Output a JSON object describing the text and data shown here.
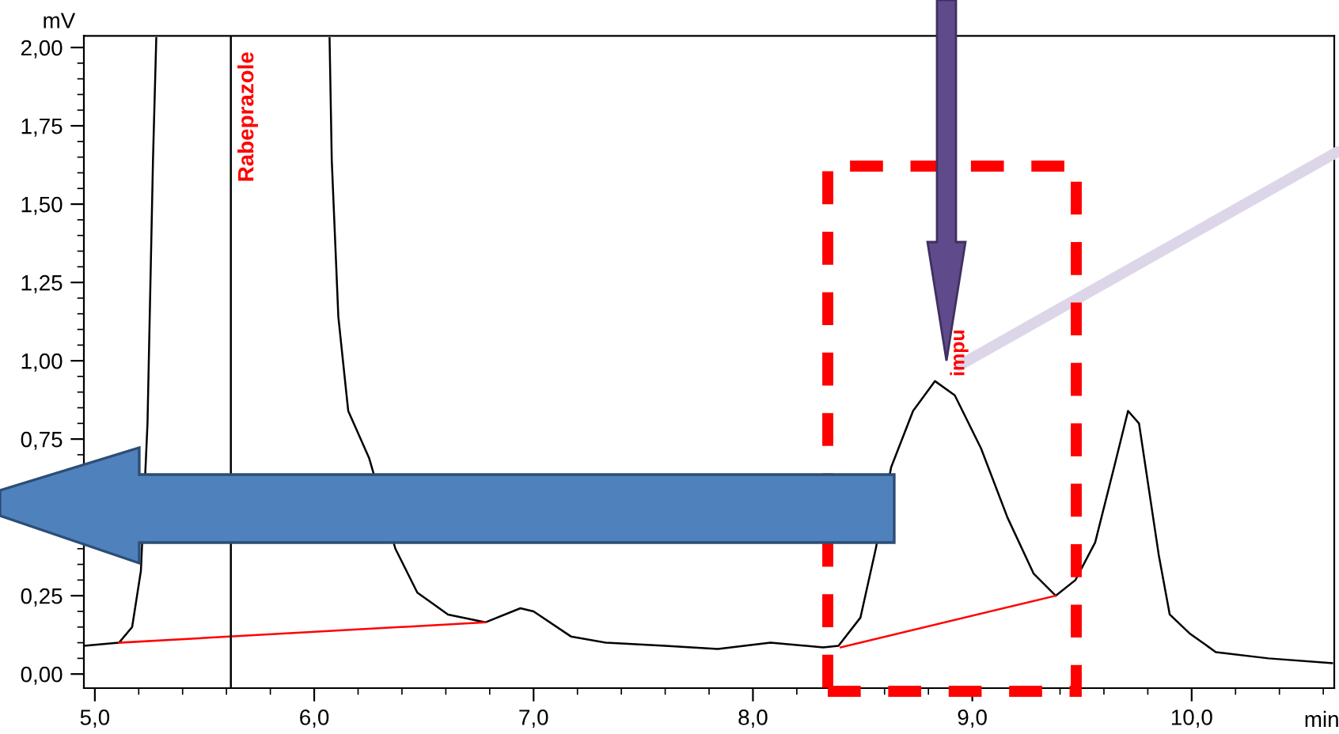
{
  "chart_data": {
    "type": "line",
    "xlabel": "min",
    "ylabel": "mV",
    "xlim": [
      4.95,
      10.65
    ],
    "ylim": [
      -0.045,
      2.037
    ],
    "xticks": [
      {
        "value": 5.0,
        "label": "5,0"
      },
      {
        "value": 5.2,
        "label": null
      },
      {
        "value": 5.4,
        "label": null
      },
      {
        "value": 5.6,
        "label": null
      },
      {
        "value": 5.8,
        "label": null
      },
      {
        "value": 6.0,
        "label": "6,0"
      },
      {
        "value": 6.2,
        "label": null
      },
      {
        "value": 6.4,
        "label": null
      },
      {
        "value": 6.6,
        "label": null
      },
      {
        "value": 6.8,
        "label": null
      },
      {
        "value": 7.0,
        "label": "7,0"
      },
      {
        "value": 7.2,
        "label": null
      },
      {
        "value": 7.4,
        "label": null
      },
      {
        "value": 7.6,
        "label": null
      },
      {
        "value": 7.8,
        "label": null
      },
      {
        "value": 8.0,
        "label": "8,0"
      },
      {
        "value": 8.2,
        "label": null
      },
      {
        "value": 8.4,
        "label": null
      },
      {
        "value": 8.6,
        "label": null
      },
      {
        "value": 8.8,
        "label": null
      },
      {
        "value": 9.0,
        "label": "9,0"
      },
      {
        "value": 9.2,
        "label": null
      },
      {
        "value": 9.4,
        "label": null
      },
      {
        "value": 9.6,
        "label": null
      },
      {
        "value": 9.8,
        "label": null
      },
      {
        "value": 10.0,
        "label": "10,0"
      },
      {
        "value": 10.2,
        "label": null
      },
      {
        "value": 10.4,
        "label": null
      },
      {
        "value": 10.6,
        "label": null
      }
    ],
    "yticks": [
      {
        "value": 0.0,
        "label": "0,00"
      },
      {
        "value": 0.05,
        "label": null
      },
      {
        "value": 0.1,
        "label": null
      },
      {
        "value": 0.15,
        "label": null
      },
      {
        "value": 0.2,
        "label": null
      },
      {
        "value": 0.25,
        "label": "0,25"
      },
      {
        "value": 0.3,
        "label": null
      },
      {
        "value": 0.35,
        "label": null
      },
      {
        "value": 0.4,
        "label": null
      },
      {
        "value": 0.45,
        "label": null
      },
      {
        "value": 0.5,
        "label": null
      },
      {
        "value": 0.55,
        "label": null
      },
      {
        "value": 0.6,
        "label": null
      },
      {
        "value": 0.65,
        "label": null
      },
      {
        "value": 0.7,
        "label": null
      },
      {
        "value": 0.75,
        "label": "0,75"
      },
      {
        "value": 0.8,
        "label": null
      },
      {
        "value": 0.85,
        "label": null
      },
      {
        "value": 0.9,
        "label": null
      },
      {
        "value": 0.95,
        "label": null
      },
      {
        "value": 1.0,
        "label": "1,00"
      },
      {
        "value": 1.05,
        "label": null
      },
      {
        "value": 1.1,
        "label": null
      },
      {
        "value": 1.15,
        "label": null
      },
      {
        "value": 1.2,
        "label": null
      },
      {
        "value": 1.25,
        "label": "1,25"
      },
      {
        "value": 1.3,
        "label": null
      },
      {
        "value": 1.35,
        "label": null
      },
      {
        "value": 1.4,
        "label": null
      },
      {
        "value": 1.45,
        "label": null
      },
      {
        "value": 1.5,
        "label": "1,50"
      },
      {
        "value": 1.55,
        "label": null
      },
      {
        "value": 1.6,
        "label": null
      },
      {
        "value": 1.65,
        "label": null
      },
      {
        "value": 1.7,
        "label": null
      },
      {
        "value": 1.75,
        "label": "1,75"
      },
      {
        "value": 1.8,
        "label": null
      },
      {
        "value": 1.85,
        "label": null
      },
      {
        "value": 1.9,
        "label": null
      },
      {
        "value": 1.95,
        "label": null
      },
      {
        "value": 2.0,
        "label": "2,00"
      }
    ],
    "grid": false,
    "legend": false,
    "marker": "none",
    "line_style": "solid",
    "series": [
      {
        "color": "#000000",
        "x": [
          4.95,
          5.11,
          5.17,
          5.21,
          5.24,
          5.265,
          5.28,
          null,
          6.07,
          6.08,
          6.11,
          6.155,
          6.25,
          6.37,
          6.47,
          6.61,
          6.78,
          6.94,
          7.0,
          7.17,
          7.33,
          7.6,
          7.84,
          8.08,
          8.32,
          8.39,
          8.49,
          8.56,
          8.63,
          8.73,
          8.83,
          8.92,
          9.04,
          9.16,
          9.28,
          9.38,
          9.47,
          9.56,
          9.65,
          9.71,
          9.76,
          9.85,
          9.9,
          9.99,
          10.11,
          10.35,
          10.64
        ],
        "values": [
          0.09,
          0.1,
          0.15,
          0.33,
          0.8,
          1.64,
          2.03,
          null,
          2.03,
          1.64,
          1.14,
          0.84,
          0.69,
          0.4,
          0.26,
          0.19,
          0.165,
          0.21,
          0.2,
          0.12,
          0.1,
          0.09,
          0.08,
          0.1,
          0.085,
          0.09,
          0.18,
          0.4,
          0.66,
          0.84,
          0.935,
          0.89,
          0.72,
          0.5,
          0.32,
          0.25,
          0.3,
          0.42,
          0.67,
          0.84,
          0.8,
          0.38,
          0.19,
          0.13,
          0.07,
          0.05,
          0.035
        ]
      },
      {
        "color": "#ff0000",
        "x": [
          5.11,
          6.78
        ],
        "values": [
          0.1,
          0.165
        ]
      },
      {
        "color": "#ff0000",
        "x": [
          8.4,
          9.38
        ],
        "values": [
          0.085,
          0.25
        ]
      }
    ],
    "ref_lines": [
      {
        "axis": "x",
        "value": 5.62,
        "label": "Rabeprazole",
        "color": "#000000"
      }
    ],
    "annotations": [
      "impu"
    ]
  }
}
